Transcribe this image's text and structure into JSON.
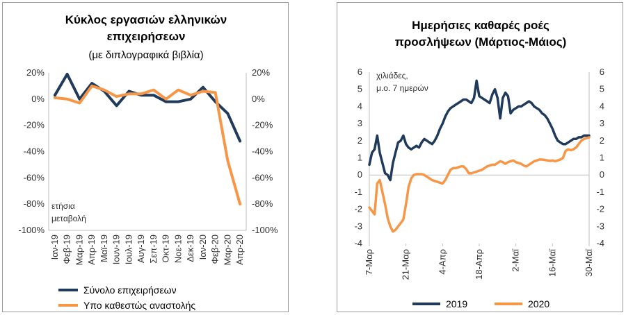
{
  "chart_data": [
    {
      "type": "line",
      "title_lines": [
        "Κύκλος εργασιών ελληνικών",
        "επιχειρήσεων"
      ],
      "subtitle": "(με διπλογραφικά βιβλία)",
      "annotation_lines": [
        "ετήσια",
        "μεταβολή"
      ],
      "ylim": [
        -100,
        20
      ],
      "y_ticks": [
        20,
        0,
        -20,
        -40,
        -60,
        -80,
        -100
      ],
      "y_tick_labels": [
        "20%",
        "0%",
        "-20%",
        "-40%",
        "-60%",
        "-80%",
        "-100%"
      ],
      "categories": [
        "Ιαν-19",
        "Φεβ-19",
        "Μαρ-19",
        "Απρ-19",
        "Μαϊ-19",
        "Ιουν-19",
        "Ιουλ-19",
        "Αυγ-19",
        "Σεπ-19",
        "Οκτ-19",
        "Νοε-19",
        "Δεκ-19",
        "Ιαν-20",
        "Φεβ-20",
        "Μαρ-20",
        "Απρ-20"
      ],
      "series": [
        {
          "name": "Σύνολο επιχειρήσεων",
          "color": "#1f3a5a",
          "values": [
            3,
            19,
            0,
            12,
            6,
            -5,
            6,
            3,
            3,
            -2,
            -2,
            0,
            9,
            -2,
            -11,
            -32
          ]
        },
        {
          "name": "Υπο καθεστώς αναστολής",
          "color": "#f79646",
          "values": [
            1,
            0,
            -3,
            10,
            7,
            2,
            4,
            4,
            7,
            0,
            7,
            3,
            6,
            5,
            -47,
            -80
          ]
        }
      ],
      "grid": false,
      "legend_position": "bottom"
    },
    {
      "type": "line",
      "title_lines": [
        "Ημερήσιες καθαρές ροές",
        "προσλήψεων (Μάρτιος-Μάιος)"
      ],
      "annotation_lines": [
        "χιλιάδες,",
        "μ.ο. 7 ημερών"
      ],
      "ylim": [
        -4,
        6
      ],
      "y_ticks": [
        6,
        5,
        4,
        3,
        2,
        1,
        0,
        -1,
        -2,
        -3,
        -4
      ],
      "x_tick_labels": [
        "7-Μαρ",
        "21-Μαρ",
        "4-Απρ",
        "18-Απρ",
        "2-Μαϊ",
        "16-Μαϊ",
        "30-Μαϊ"
      ],
      "x_tick_days": [
        0,
        14,
        28,
        42,
        56,
        70,
        84
      ],
      "x_days": [
        0,
        1,
        2,
        3,
        4,
        5,
        6,
        7,
        8,
        9,
        10,
        11,
        12,
        13,
        14,
        15,
        16,
        17,
        18,
        19,
        20,
        21,
        22,
        23,
        24,
        25,
        26,
        27,
        28,
        29,
        30,
        31,
        32,
        33,
        34,
        35,
        36,
        37,
        38,
        39,
        40,
        41,
        42,
        43,
        44,
        45,
        46,
        47,
        48,
        49,
        50,
        51,
        52,
        53,
        54,
        55,
        56,
        57,
        58,
        59,
        60,
        61,
        62,
        63,
        64,
        65,
        66,
        67,
        68,
        69,
        70,
        71,
        72,
        73,
        74,
        75,
        76,
        77,
        78,
        79,
        80,
        81,
        82,
        83,
        84
      ],
      "series": [
        {
          "name": "2019",
          "color": "#1f3a5a",
          "values": [
            0.6,
            1.3,
            1.5,
            2.3,
            1.3,
            0.7,
            0.1,
            0.0,
            -0.3,
            0.7,
            1.3,
            1.9,
            2.0,
            2.3,
            1.8,
            1.6,
            1.5,
            1.6,
            1.7,
            1.6,
            1.9,
            2.1,
            2.0,
            1.9,
            1.8,
            2.0,
            2.3,
            2.7,
            3.0,
            3.4,
            3.7,
            3.9,
            4.0,
            4.1,
            4.2,
            4.3,
            4.4,
            4.4,
            4.3,
            4.2,
            4.5,
            5.5,
            4.6,
            4.5,
            4.4,
            4.3,
            4.2,
            4.7,
            5.0,
            4.5,
            3.3,
            4.5,
            4.8,
            4.6,
            3.6,
            3.8,
            3.9,
            4.0,
            4.0,
            4.1,
            4.2,
            4.3,
            4.2,
            4.0,
            3.9,
            3.8,
            3.6,
            3.5,
            3.3,
            3.0,
            2.7,
            2.3,
            2.0,
            1.9,
            1.8,
            1.8,
            1.9,
            2.0,
            2.1,
            2.1,
            2.2,
            2.2,
            2.3,
            2.3,
            2.3
          ]
        },
        {
          "name": "2020",
          "color": "#f79646",
          "values": [
            -1.9,
            -2.1,
            -2.3,
            -0.5,
            -0.3,
            -1.0,
            -1.7,
            -2.5,
            -3.0,
            -3.3,
            -3.2,
            -3.0,
            -2.8,
            -2.6,
            -1.7,
            -0.7,
            -0.2,
            0.0,
            0.05,
            0.05,
            0.05,
            0.0,
            -0.1,
            -0.2,
            -0.3,
            -0.35,
            -0.4,
            -0.45,
            -0.5,
            -0.3,
            0.0,
            0.3,
            0.4,
            0.4,
            0.45,
            0.5,
            0.5,
            0.35,
            0.1,
            0.1,
            0.15,
            0.2,
            0.25,
            0.3,
            0.4,
            0.5,
            0.55,
            0.6,
            0.6,
            0.7,
            0.8,
            0.75,
            0.65,
            0.75,
            0.8,
            0.85,
            0.75,
            0.7,
            0.65,
            0.55,
            0.5,
            0.6,
            0.7,
            0.8,
            0.85,
            0.9,
            0.9,
            0.88,
            0.85,
            0.82,
            0.85,
            0.8,
            0.85,
            0.9,
            1.0,
            1.4,
            1.5,
            1.45,
            1.5,
            1.6,
            1.8,
            2.0,
            2.1,
            2.15,
            2.2
          ]
        }
      ],
      "grid": false,
      "legend_position": "bottom"
    }
  ]
}
